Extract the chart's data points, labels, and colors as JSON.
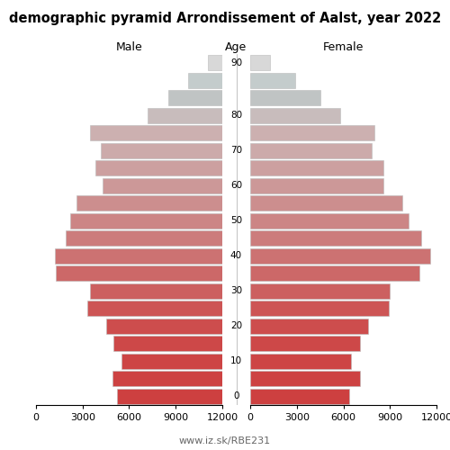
{
  "title": "demographic pyramid Arrondissement of Aalst, year 2022",
  "male": [
    6800,
    7100,
    6500,
    7000,
    7500,
    8700,
    8500,
    10700,
    10800,
    10100,
    9800,
    9400,
    7700,
    8200,
    7800,
    8500,
    4800,
    3500,
    2200,
    900
  ],
  "female": [
    6400,
    7100,
    6500,
    7100,
    7600,
    8900,
    9000,
    10900,
    11600,
    11000,
    10200,
    9800,
    8600,
    8600,
    7800,
    8000,
    5800,
    4500,
    2900,
    1300
  ],
  "age_tick_positions": [
    0,
    2,
    4,
    6,
    8,
    10,
    12,
    14,
    16,
    19
  ],
  "age_tick_labels": [
    "0",
    "10",
    "20",
    "30",
    "40",
    "50",
    "60",
    "70",
    "80",
    "90"
  ],
  "colors": [
    "#cd4040",
    "#cd4242",
    "#cd4545",
    "#cd4848",
    "#cd4d4d",
    "#cd5555",
    "#cc6060",
    "#cc6868",
    "#cc7272",
    "#cc7c7c",
    "#cc8585",
    "#cc8e8e",
    "#cc9898",
    "#cca0a0",
    "#ccaaaa",
    "#ccb0b0",
    "#c8bcbc",
    "#c0c4c4",
    "#c4cccc",
    "#d8d8d8"
  ],
  "xlim": 12000,
  "xticks": [
    0,
    3000,
    6000,
    9000,
    12000
  ],
  "xtick_labels_male": [
    "12000",
    "9000",
    "6000",
    "3000",
    "0"
  ],
  "xtick_labels_female": [
    "0",
    "3000",
    "6000",
    "9000",
    "12000"
  ],
  "xlabel_male": "Male",
  "xlabel_female": "Female",
  "xlabel_age": "Age",
  "url": "www.iz.sk/RBE231",
  "background_color": "#ffffff",
  "bar_edge_color": "#bbbbbb",
  "bar_linewidth": 0.4,
  "bar_height": 0.85,
  "title_fontsize": 10.5,
  "label_fontsize": 9,
  "tick_fontsize": 8,
  "age_fontsize": 7.5,
  "url_fontsize": 8
}
